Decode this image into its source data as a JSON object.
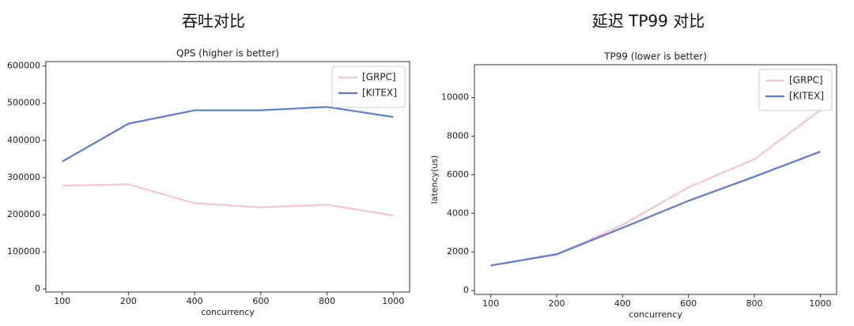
{
  "chart_data": [
    {
      "type": "line",
      "heading": "吞吐对比",
      "title": "QPS (higher is better)",
      "xlabel": "concurrency",
      "categories": [
        "100",
        "200",
        "400",
        "600",
        "800",
        "1000"
      ],
      "series": [
        {
          "name": "[GRPC]",
          "color": "#f7c4cf",
          "values": [
            278000,
            282000,
            231000,
            220000,
            227000,
            198000
          ]
        },
        {
          "name": "[KITEX]",
          "color": "#5b7bd5",
          "values": [
            343000,
            445000,
            481000,
            481000,
            490000,
            463000
          ]
        }
      ],
      "ylim": [
        -8000,
        612000
      ],
      "yticks": [
        0,
        100000,
        200000,
        300000,
        400000,
        500000,
        600000
      ],
      "legend": "upper right"
    },
    {
      "type": "line",
      "heading": "延迟 TP99 对比",
      "title": "TP99 (lower is better)",
      "xlabel": "concurrency",
      "ylabel": "latency(us)",
      "categories": [
        "100",
        "200",
        "400",
        "600",
        "800",
        "1000"
      ],
      "series": [
        {
          "name": "[GRPC]",
          "color": "#f7c4cf",
          "values": [
            1300,
            1880,
            3400,
            5350,
            6800,
            9350
          ]
        },
        {
          "name": "[KITEX]",
          "color": "#5b7bd5",
          "values": [
            1300,
            1880,
            3250,
            4650,
            5900,
            7200
          ]
        }
      ],
      "ylim": [
        -200,
        11700
      ],
      "yticks": [
        0,
        2000,
        4000,
        6000,
        8000,
        10000
      ],
      "legend": "upper right"
    }
  ]
}
